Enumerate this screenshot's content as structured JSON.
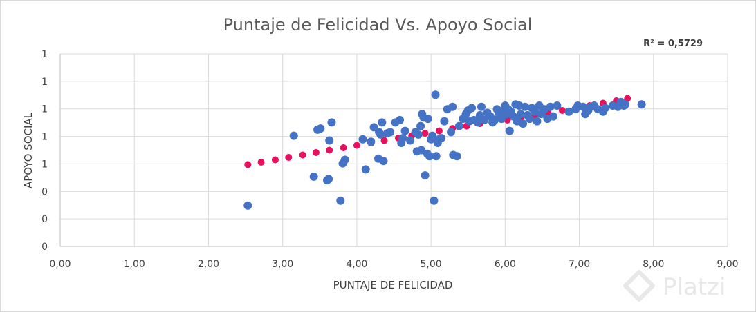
{
  "chart_data": {
    "type": "scatter",
    "title": "Puntaje de Felicidad Vs. Apoyo Social",
    "xlabel": "PUNTAJE DE FELICIDAD",
    "ylabel": "APOYO SOCIAL",
    "annotation": "R² = 0,5729",
    "xlim": [
      0,
      9
    ],
    "ylim": [
      0,
      1.6
    ],
    "x_ticks": [
      "0,00",
      "1,00",
      "2,00",
      "3,00",
      "4,00",
      "5,00",
      "6,00",
      "7,00",
      "8,00",
      "9,00"
    ],
    "y_ticks": [
      "0",
      "0",
      "0",
      "1",
      "1",
      "1",
      "1",
      "1"
    ],
    "grid": true,
    "colors": {
      "series": "#4472c4",
      "trend": "#e8105f",
      "grid": "#d9d9d9"
    },
    "series": [
      {
        "values": [
          [
            2.53,
            0.34
          ],
          [
            3.15,
            0.92
          ],
          [
            3.42,
            0.58
          ],
          [
            3.47,
            0.97
          ],
          [
            3.51,
            0.98
          ],
          [
            3.6,
            0.55
          ],
          [
            3.62,
            0.56
          ],
          [
            3.63,
            0.88
          ],
          [
            3.66,
            1.03
          ],
          [
            3.78,
            0.38
          ],
          [
            3.81,
            0.69
          ],
          [
            3.84,
            0.72
          ],
          [
            4.08,
            0.89
          ],
          [
            4.12,
            0.64
          ],
          [
            4.19,
            0.87
          ],
          [
            4.23,
            0.99
          ],
          [
            4.29,
            0.73
          ],
          [
            4.3,
            0.95
          ],
          [
            4.32,
            0.93
          ],
          [
            4.34,
            1.03
          ],
          [
            4.36,
            0.71
          ],
          [
            4.41,
            0.94
          ],
          [
            4.45,
            0.95
          ],
          [
            4.52,
            1.03
          ],
          [
            4.58,
            1.05
          ],
          [
            4.6,
            0.86
          ],
          [
            4.62,
            0.9
          ],
          [
            4.65,
            0.96
          ],
          [
            4.72,
            0.88
          ],
          [
            4.79,
            0.95
          ],
          [
            4.81,
            0.79
          ],
          [
            4.83,
            0.93
          ],
          [
            4.86,
            1.0
          ],
          [
            4.87,
            0.8
          ],
          [
            4.88,
            1.1
          ],
          [
            4.9,
            1.07
          ],
          [
            4.92,
            0.59
          ],
          [
            4.95,
            0.77
          ],
          [
            4.96,
            1.06
          ],
          [
            4.98,
            0.75
          ],
          [
            5.0,
            0.89
          ],
          [
            5.02,
            0.92
          ],
          [
            5.04,
            0.38
          ],
          [
            5.06,
            1.26
          ],
          [
            5.07,
            0.75
          ],
          [
            5.09,
            0.86
          ],
          [
            5.11,
            0.89
          ],
          [
            5.14,
            0.9
          ],
          [
            5.18,
            1.04
          ],
          [
            5.22,
            1.14
          ],
          [
            5.27,
            0.95
          ],
          [
            5.29,
            1.16
          ],
          [
            5.3,
            0.76
          ],
          [
            5.35,
            0.75
          ],
          [
            5.38,
            1.0
          ],
          [
            5.43,
            1.06
          ],
          [
            5.47,
            1.1
          ],
          [
            5.5,
            1.13
          ],
          [
            5.52,
            1.04
          ],
          [
            5.55,
            1.15
          ],
          [
            5.58,
            1.05
          ],
          [
            5.63,
            1.03
          ],
          [
            5.66,
            1.09
          ],
          [
            5.68,
            1.16
          ],
          [
            5.72,
            1.05
          ],
          [
            5.76,
            1.11
          ],
          [
            5.8,
            1.08
          ],
          [
            5.83,
            1.03
          ],
          [
            5.86,
            1.05
          ],
          [
            5.89,
            1.14
          ],
          [
            5.92,
            1.1
          ],
          [
            5.95,
            1.06
          ],
          [
            5.97,
            1.12
          ],
          [
            6.0,
            1.17
          ],
          [
            6.02,
            1.1
          ],
          [
            6.04,
            1.14
          ],
          [
            6.06,
            0.96
          ],
          [
            6.08,
            1.12
          ],
          [
            6.11,
            1.08
          ],
          [
            6.14,
            1.18
          ],
          [
            6.16,
            1.04
          ],
          [
            6.19,
            1.17
          ],
          [
            6.21,
            1.1
          ],
          [
            6.24,
            1.02
          ],
          [
            6.27,
            1.16
          ],
          [
            6.3,
            1.09
          ],
          [
            6.33,
            1.06
          ],
          [
            6.36,
            1.15
          ],
          [
            6.4,
            1.12
          ],
          [
            6.43,
            1.04
          ],
          [
            6.46,
            1.17
          ],
          [
            6.49,
            1.1
          ],
          [
            6.53,
            1.14
          ],
          [
            6.57,
            1.06
          ],
          [
            6.61,
            1.16
          ],
          [
            6.65,
            1.08
          ],
          [
            6.7,
            1.17
          ],
          [
            6.86,
            1.12
          ],
          [
            6.95,
            1.14
          ],
          [
            6.98,
            1.17
          ],
          [
            7.05,
            1.16
          ],
          [
            7.08,
            1.1
          ],
          [
            7.12,
            1.13
          ],
          [
            7.15,
            1.16
          ],
          [
            7.2,
            1.17
          ],
          [
            7.25,
            1.14
          ],
          [
            7.32,
            1.12
          ],
          [
            7.35,
            1.15
          ],
          [
            7.45,
            1.17
          ],
          [
            7.52,
            1.16
          ],
          [
            7.56,
            1.2
          ],
          [
            7.6,
            1.17
          ],
          [
            7.62,
            1.18
          ],
          [
            7.84,
            1.18
          ]
        ]
      },
      {
        "values": [
          [
            2.53,
            0.68
          ],
          [
            2.71,
            0.7
          ],
          [
            2.9,
            0.72
          ],
          [
            3.08,
            0.74
          ],
          [
            3.27,
            0.76
          ],
          [
            3.45,
            0.78
          ],
          [
            3.63,
            0.8
          ],
          [
            3.82,
            0.82
          ],
          [
            4.0,
            0.84
          ],
          [
            4.19,
            0.86
          ],
          [
            4.37,
            0.88
          ],
          [
            4.56,
            0.9
          ],
          [
            4.74,
            0.92
          ],
          [
            4.92,
            0.94
          ],
          [
            5.11,
            0.96
          ],
          [
            5.29,
            0.98
          ],
          [
            5.48,
            1.0
          ],
          [
            5.66,
            1.02
          ],
          [
            5.85,
            1.04
          ],
          [
            6.03,
            1.05
          ],
          [
            6.21,
            1.07
          ],
          [
            6.4,
            1.09
          ],
          [
            6.58,
            1.11
          ],
          [
            6.77,
            1.13
          ],
          [
            6.95,
            1.15
          ],
          [
            7.14,
            1.17
          ],
          [
            7.32,
            1.19
          ],
          [
            7.5,
            1.21
          ],
          [
            7.65,
            1.23
          ]
        ]
      }
    ]
  },
  "watermark": {
    "text": "Platzi",
    "icon": "platzi-logo-icon"
  }
}
